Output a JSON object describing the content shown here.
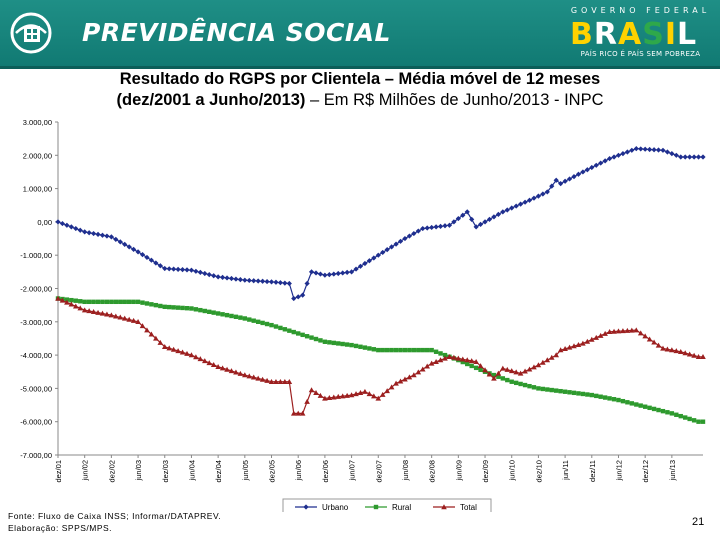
{
  "header": {
    "brand": "PREVIDÊNCIA SOCIAL",
    "gov_top": "GOVERNO FEDERAL",
    "gov_brasil": "BRASIL",
    "gov_slogan": "PAÍS RICO É PAÍS SEM POBREZA",
    "logo_icon": "previdencia-logo-icon",
    "colors": {
      "header_bg": "#1a857d",
      "brasil_b": "#ffd200",
      "brasil_r": "#ffffff",
      "brasil_a": "#ffd200",
      "brasil_s": "#2ea84a",
      "brasil_i": "#ffd200",
      "brasil_l": "#ffffff"
    }
  },
  "title": {
    "line1": "Resultado do RGPS por Clientela – Média móvel de 12 meses",
    "line2_bold": "(dez/2001 a Junho/2013)",
    "line2_rest": " – Em R$ Milhões de Junho/2013 - INPC"
  },
  "chart_data": {
    "type": "line",
    "title": "",
    "xlabel": "",
    "ylabel": "",
    "ylim": [
      -7000,
      3000
    ],
    "y_ticks": [
      "3.000,00",
      "2.000,00",
      "1.000,00",
      "0,00",
      "-1.000,00",
      "-2.000,00",
      "-3.000,00",
      "-4.000,00",
      "-5.000,00",
      "-6.000,00",
      "-7.000,00"
    ],
    "y_tick_values": [
      3000,
      2000,
      1000,
      0,
      -1000,
      -2000,
      -3000,
      -4000,
      -5000,
      -6000,
      -7000
    ],
    "x_tick_labels": [
      "dez/01",
      "jun/02",
      "dez/02",
      "jun/03",
      "dez/03",
      "jun/04",
      "dez/04",
      "jun/05",
      "dez/05",
      "jun/06",
      "dez/06",
      "jun/07",
      "dez/07",
      "jun/08",
      "dez/08",
      "jun/09",
      "dez/09",
      "jun/10",
      "dez/10",
      "jun/11",
      "dez/11",
      "jun/12",
      "dez/12",
      "jun/13"
    ],
    "grid": false,
    "legend_position": "bottom",
    "series": [
      {
        "name": "Urbano",
        "color": "#1f2f8f",
        "marker": "diamond",
        "points": [
          [
            0,
            0
          ],
          [
            6,
            -300
          ],
          [
            12,
            -450
          ],
          [
            18,
            -900
          ],
          [
            24,
            -1400
          ],
          [
            30,
            -1450
          ],
          [
            36,
            -1650
          ],
          [
            42,
            -1750
          ],
          [
            48,
            -1800
          ],
          [
            52,
            -1850
          ],
          [
            53,
            -2300
          ],
          [
            55,
            -2200
          ],
          [
            57,
            -1500
          ],
          [
            60,
            -1600
          ],
          [
            66,
            -1500
          ],
          [
            72,
            -1000
          ],
          [
            78,
            -500
          ],
          [
            82,
            -200
          ],
          [
            88,
            -100
          ],
          [
            92,
            300
          ],
          [
            94,
            -150
          ],
          [
            100,
            300
          ],
          [
            106,
            650
          ],
          [
            110,
            900
          ],
          [
            112,
            1250
          ],
          [
            113,
            1150
          ],
          [
            118,
            1500
          ],
          [
            124,
            1900
          ],
          [
            130,
            2200
          ],
          [
            136,
            2150
          ],
          [
            140,
            1950
          ],
          [
            144,
            1950
          ],
          [
            145,
            1950
          ]
        ]
      },
      {
        "name": "Rural",
        "color": "#2e9a2e",
        "marker": "square",
        "points": [
          [
            0,
            -2300
          ],
          [
            6,
            -2400
          ],
          [
            12,
            -2400
          ],
          [
            18,
            -2400
          ],
          [
            24,
            -2550
          ],
          [
            30,
            -2600
          ],
          [
            36,
            -2750
          ],
          [
            42,
            -2900
          ],
          [
            48,
            -3100
          ],
          [
            54,
            -3350
          ],
          [
            60,
            -3600
          ],
          [
            66,
            -3700
          ],
          [
            72,
            -3850
          ],
          [
            78,
            -3850
          ],
          [
            84,
            -3850
          ],
          [
            90,
            -4150
          ],
          [
            96,
            -4500
          ],
          [
            102,
            -4800
          ],
          [
            108,
            -5000
          ],
          [
            114,
            -5100
          ],
          [
            120,
            -5200
          ],
          [
            126,
            -5350
          ],
          [
            132,
            -5550
          ],
          [
            138,
            -5750
          ],
          [
            144,
            -6000
          ],
          [
            145,
            -6000
          ]
        ]
      },
      {
        "name": "Total",
        "color": "#9c1f1f",
        "marker": "triangle",
        "points": [
          [
            0,
            -2300
          ],
          [
            6,
            -2650
          ],
          [
            12,
            -2800
          ],
          [
            18,
            -3000
          ],
          [
            24,
            -3750
          ],
          [
            30,
            -4000
          ],
          [
            36,
            -4350
          ],
          [
            42,
            -4600
          ],
          [
            48,
            -4800
          ],
          [
            52,
            -4800
          ],
          [
            53,
            -5750
          ],
          [
            55,
            -5750
          ],
          [
            57,
            -5050
          ],
          [
            60,
            -5300
          ],
          [
            66,
            -5200
          ],
          [
            69,
            -5100
          ],
          [
            72,
            -5300
          ],
          [
            76,
            -4850
          ],
          [
            80,
            -4600
          ],
          [
            84,
            -4250
          ],
          [
            86,
            -4150
          ],
          [
            88,
            -4050
          ],
          [
            94,
            -4200
          ],
          [
            98,
            -4700
          ],
          [
            100,
            -4400
          ],
          [
            104,
            -4550
          ],
          [
            108,
            -4300
          ],
          [
            112,
            -4000
          ],
          [
            113,
            -3850
          ],
          [
            118,
            -3650
          ],
          [
            124,
            -3300
          ],
          [
            130,
            -3250
          ],
          [
            136,
            -3800
          ],
          [
            140,
            -3900
          ],
          [
            144,
            -4050
          ],
          [
            145,
            -4050
          ]
        ]
      }
    ]
  },
  "footer": {
    "line1": "Fonte: Fluxo de Caixa INSS; Informar/DATAPREV.",
    "line2": "Elaboração: SPPS/MPS."
  },
  "page_number": "21"
}
